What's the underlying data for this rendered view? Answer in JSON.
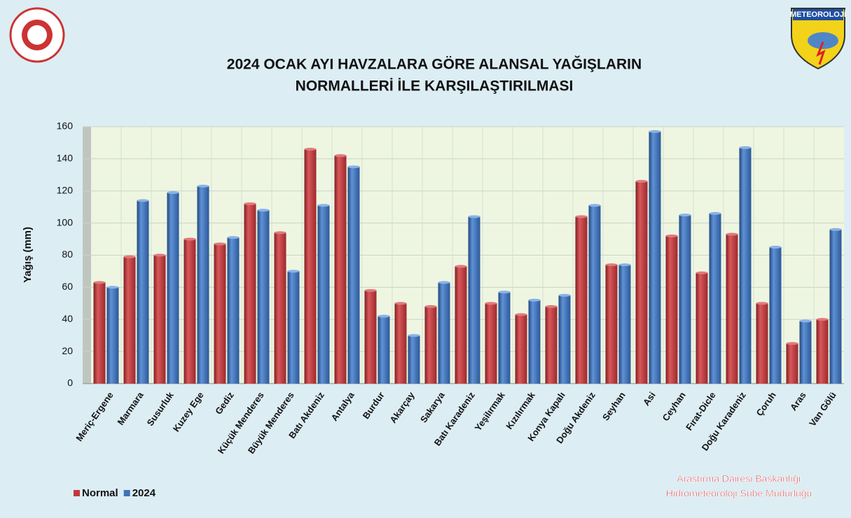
{
  "chart_data": {
    "type": "bar",
    "title": [
      "2024 OCAK AYI HAVZALARA GÖRE ALANSAL YAĞIŞLARIN",
      "NORMALLERİ İLE KARŞILAŞTIRILMASI"
    ],
    "ylabel": "Yağış (mm)",
    "logo_text": "METEOROLOJİ",
    "footer": [
      "Araştırma Dairesi Başkanlığı",
      "Hidrometeoroloji Şube Müdürlüğü"
    ],
    "categories": [
      "Meriç-Ergene",
      "Marmara",
      "Susurluk",
      "Kuzey Ege",
      "Gediz",
      "Küçük Menderes",
      "Büyük Menderes",
      "Batı Akdeniz",
      "Antalya",
      "Burdur",
      "Akarçay",
      "Sakarya",
      "Batı Karadeniz",
      "Yeşilırmak",
      "Kızılırmak",
      "Konya Kapalı",
      "Doğu Akdeniz",
      "Seyhan",
      "Asi",
      "Ceyhan",
      "Fırat-Dicle",
      "Doğu Karadeniz",
      "Çoruh",
      "Aras",
      "Van Gölü"
    ],
    "series": [
      {
        "name": "Normal",
        "color": "#c0393b",
        "values": [
          63,
          79,
          80,
          90,
          87,
          112,
          94,
          146,
          142,
          58,
          50,
          48,
          73,
          50,
          43,
          48,
          104,
          74,
          126,
          92,
          69,
          93,
          50,
          25,
          40
        ]
      },
      {
        "name": "2024",
        "color": "#3f72b8",
        "values": [
          60,
          114,
          119,
          123,
          91,
          108,
          70,
          111,
          135,
          42,
          30,
          63,
          104,
          57,
          52,
          55,
          111,
          74,
          157,
          105,
          106,
          147,
          85,
          39,
          96
        ]
      }
    ],
    "ylim": [
      0,
      160
    ],
    "yticks": [
      0,
      20,
      40,
      60,
      80,
      100,
      120,
      140,
      160
    ],
    "grid": true,
    "legend": "bottom-left"
  }
}
